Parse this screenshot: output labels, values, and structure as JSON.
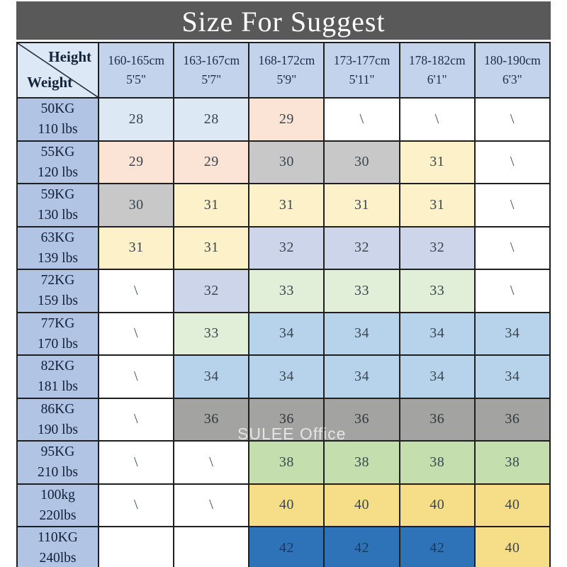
{
  "title": "Size For Suggest",
  "watermark": "SULEE Office",
  "corner": {
    "top": "Height",
    "bottom": "Weight"
  },
  "palette": {
    "title_bar_bg": "#595959",
    "corner_bg": "#dde8f6",
    "col_header_bg": "#c3d3eb",
    "row_header_bg": "#b1c4e3",
    "white": "#ffffff",
    "blue_pale": "#dce8f4",
    "peach": "#fbe3d5",
    "gray_light": "#c8c8c8",
    "yellow_pale": "#fcf1c9",
    "lavender": "#cdd5ea",
    "green_pale": "#e1eed8",
    "blue_mid": "#b7d3ec",
    "gray_mid": "#a3a3a1",
    "green_mid": "#c4deae",
    "gold": "#f6dd88",
    "blue_dark": "#2e73b8"
  },
  "text_overrides": {
    "blue_dark": "#1b3a5e",
    "gray_mid": "#2f383c"
  },
  "chart_data": {
    "type": "table",
    "title": "Size For Suggest",
    "columns": [
      {
        "range": "160-165cm",
        "ft": "5'5\""
      },
      {
        "range": "163-167cm",
        "ft": "5'7\""
      },
      {
        "range": "168-172cm",
        "ft": "5'9\""
      },
      {
        "range": "173-177cm",
        "ft": "5'11\""
      },
      {
        "range": "178-182cm",
        "ft": "6'1\""
      },
      {
        "range": "180-190cm",
        "ft": "6'3\""
      }
    ],
    "rows": [
      {
        "kg": "50KG",
        "lbs": "110 lbs",
        "cells": [
          {
            "t": "28",
            "c": "blue_pale"
          },
          {
            "t": "28",
            "c": "blue_pale"
          },
          {
            "t": "29",
            "c": "peach"
          },
          {
            "t": "\\",
            "c": "white"
          },
          {
            "t": "\\",
            "c": "white"
          },
          {
            "t": "\\",
            "c": "white"
          }
        ]
      },
      {
        "kg": "55KG",
        "lbs": "120 lbs",
        "cells": [
          {
            "t": "29",
            "c": "peach"
          },
          {
            "t": "29",
            "c": "peach"
          },
          {
            "t": "30",
            "c": "gray_light"
          },
          {
            "t": "30",
            "c": "gray_light"
          },
          {
            "t": "31",
            "c": "yellow_pale"
          },
          {
            "t": "\\",
            "c": "white"
          }
        ]
      },
      {
        "kg": "59KG",
        "lbs": "130 lbs",
        "cells": [
          {
            "t": "30",
            "c": "gray_light"
          },
          {
            "t": "31",
            "c": "yellow_pale"
          },
          {
            "t": "31",
            "c": "yellow_pale"
          },
          {
            "t": "31",
            "c": "yellow_pale"
          },
          {
            "t": "31",
            "c": "yellow_pale"
          },
          {
            "t": "\\",
            "c": "white"
          }
        ]
      },
      {
        "kg": "63KG",
        "lbs": "139 lbs",
        "cells": [
          {
            "t": "31",
            "c": "yellow_pale"
          },
          {
            "t": "31",
            "c": "yellow_pale"
          },
          {
            "t": "32",
            "c": "lavender"
          },
          {
            "t": "32",
            "c": "lavender"
          },
          {
            "t": "32",
            "c": "lavender"
          },
          {
            "t": "\\",
            "c": "white"
          }
        ]
      },
      {
        "kg": "72KG",
        "lbs": "159 lbs",
        "cells": [
          {
            "t": "\\",
            "c": "white"
          },
          {
            "t": "32",
            "c": "lavender"
          },
          {
            "t": "33",
            "c": "green_pale"
          },
          {
            "t": "33",
            "c": "green_pale"
          },
          {
            "t": "33",
            "c": "green_pale"
          },
          {
            "t": "\\",
            "c": "white"
          }
        ]
      },
      {
        "kg": "77KG",
        "lbs": "170 lbs",
        "cells": [
          {
            "t": "\\",
            "c": "white"
          },
          {
            "t": "33",
            "c": "green_pale"
          },
          {
            "t": "34",
            "c": "blue_mid"
          },
          {
            "t": "34",
            "c": "blue_mid"
          },
          {
            "t": "34",
            "c": "blue_mid"
          },
          {
            "t": "34",
            "c": "blue_mid"
          }
        ]
      },
      {
        "kg": "82KG",
        "lbs": "181 lbs",
        "cells": [
          {
            "t": "\\",
            "c": "white"
          },
          {
            "t": "34",
            "c": "blue_mid"
          },
          {
            "t": "34",
            "c": "blue_mid"
          },
          {
            "t": "34",
            "c": "blue_mid"
          },
          {
            "t": "34",
            "c": "blue_mid"
          },
          {
            "t": "34",
            "c": "blue_mid"
          }
        ]
      },
      {
        "kg": "86KG",
        "lbs": "190 lbs",
        "cells": [
          {
            "t": "\\",
            "c": "white"
          },
          {
            "t": "36",
            "c": "gray_mid"
          },
          {
            "t": "36",
            "c": "gray_mid"
          },
          {
            "t": "36",
            "c": "gray_mid"
          },
          {
            "t": "36",
            "c": "gray_mid"
          },
          {
            "t": "36",
            "c": "gray_mid"
          }
        ]
      },
      {
        "kg": "95KG",
        "lbs": "210 lbs",
        "cells": [
          {
            "t": "\\",
            "c": "white"
          },
          {
            "t": "\\",
            "c": "white"
          },
          {
            "t": "38",
            "c": "green_mid"
          },
          {
            "t": "38",
            "c": "green_mid"
          },
          {
            "t": "38",
            "c": "green_mid"
          },
          {
            "t": "38",
            "c": "green_mid"
          }
        ]
      },
      {
        "kg": "100kg",
        "lbs": "220lbs",
        "cells": [
          {
            "t": "\\",
            "c": "white"
          },
          {
            "t": "\\",
            "c": "white"
          },
          {
            "t": "40",
            "c": "gold"
          },
          {
            "t": "40",
            "c": "gold"
          },
          {
            "t": "40",
            "c": "gold"
          },
          {
            "t": "40",
            "c": "gold"
          }
        ]
      },
      {
        "kg": "110KG",
        "lbs": "240lbs",
        "cells": [
          {
            "t": "",
            "c": "white"
          },
          {
            "t": "",
            "c": "white"
          },
          {
            "t": "42",
            "c": "blue_dark"
          },
          {
            "t": "42",
            "c": "blue_dark"
          },
          {
            "t": "42",
            "c": "blue_dark"
          },
          {
            "t": "40",
            "c": "gold"
          }
        ]
      }
    ]
  }
}
